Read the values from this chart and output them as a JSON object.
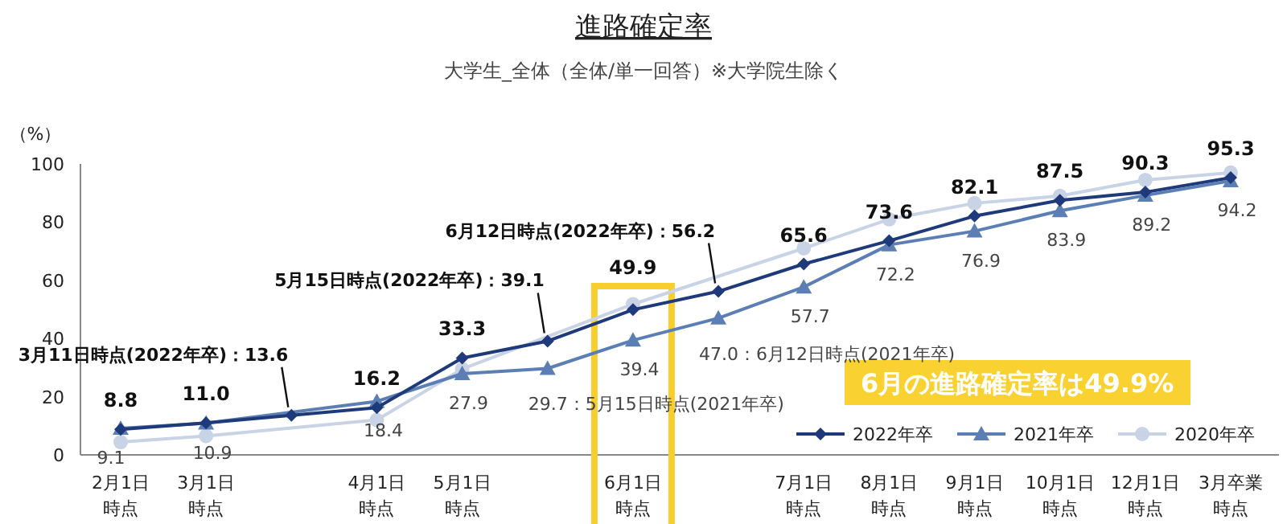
{
  "chart_data": {
    "type": "line",
    "title": "進路確定率",
    "subtitle": "大学生_全体（全体/単一回答）※大学院生除く",
    "ylabel": "（%）",
    "categories": [
      "2月1日時点",
      "3月1日時点",
      null,
      "4月1日時点",
      "5月1日時点",
      null,
      "6月1日時点",
      null,
      "7月1日時点",
      "8月1日時点",
      "9月1日時点",
      "10月1日時点",
      "12月1日時点",
      "3月卒業時点"
    ],
    "ylim": [
      0,
      100
    ],
    "yticks": [
      0,
      20,
      40,
      60,
      80,
      100
    ],
    "grid": false,
    "legend": "bottom right",
    "series": [
      {
        "name": "2022年卒",
        "color": "#1f3a7a",
        "marker": "diamond",
        "values": [
          8.8,
          11.0,
          13.6,
          16.2,
          33.3,
          39.1,
          49.9,
          56.2,
          65.6,
          73.6,
          82.1,
          87.5,
          90.3,
          95.3
        ],
        "value_labels": [
          "8.8",
          "11.0",
          "3月11日時点(2022年卒)：13.6",
          "16.2",
          "33.3",
          "5月15日時点(2022年卒)：39.1",
          "49.9",
          "6月12日時点(2022年卒)：56.2",
          "65.6",
          "73.6",
          "82.1",
          "87.5",
          "90.3",
          "95.3"
        ]
      },
      {
        "name": "2021年卒",
        "color": "#5b7fb5",
        "marker": "triangle",
        "values": [
          9.1,
          10.9,
          null,
          18.4,
          27.9,
          29.7,
          39.4,
          47.0,
          57.7,
          72.2,
          76.9,
          83.9,
          89.2,
          94.2
        ],
        "value_labels": [
          "9.1",
          "10.9",
          null,
          "18.4",
          "27.9",
          "29.7：5月15日時点(2021年卒)",
          "39.4",
          "47.0：6月12日時点(2021年卒)",
          "57.7",
          "72.2",
          "76.9",
          "83.9",
          "89.2",
          "94.2"
        ]
      },
      {
        "name": "2020年卒",
        "color": "#c9d3e6",
        "marker": "circle",
        "values": [
          4.4,
          6.5,
          null,
          12.0,
          29.5,
          null,
          51.8,
          null,
          71.0,
          81.0,
          86.5,
          89.0,
          94.5,
          97.0
        ]
      }
    ],
    "annotations": [
      "6月の進路確定率は49.9%"
    ]
  }
}
